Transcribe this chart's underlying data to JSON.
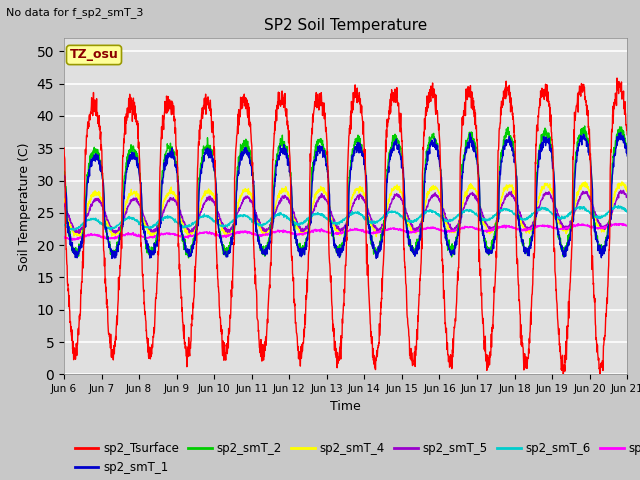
{
  "title": "SP2 Soil Temperature",
  "subtitle": "No data for f_sp2_smT_3",
  "xlabel": "Time",
  "ylabel": "Soil Temperature (C)",
  "ylim": [
    0,
    52
  ],
  "yticks": [
    0,
    5,
    10,
    15,
    20,
    25,
    30,
    35,
    40,
    45,
    50
  ],
  "date_labels": [
    "Jun 6",
    "Jun 7",
    "Jun 8",
    "Jun 9",
    "Jun 10",
    "Jun 11",
    "Jun 12",
    "Jun 13",
    "Jun 14",
    "Jun 15",
    "Jun 16",
    "Jun 17",
    "Jun 18",
    "Jun 19",
    "Jun 20",
    "Jun 21"
  ],
  "tz_label": "TZ_osu",
  "tz_box_color": "#ffff99",
  "tz_text_color": "#8b0000",
  "series_colors": {
    "sp2_Tsurface": "#ff0000",
    "sp2_smT_1": "#0000cc",
    "sp2_smT_2": "#00cc00",
    "sp2_smT_4": "#ffff00",
    "sp2_smT_5": "#9900cc",
    "sp2_smT_6": "#00cccc",
    "sp2_smT_7": "#ff00ff"
  },
  "fig_color": "#c8c8c8",
  "bg_color": "#e0e0e0",
  "grid_color": "#ffffff",
  "n_days": 15,
  "points_per_day": 144
}
